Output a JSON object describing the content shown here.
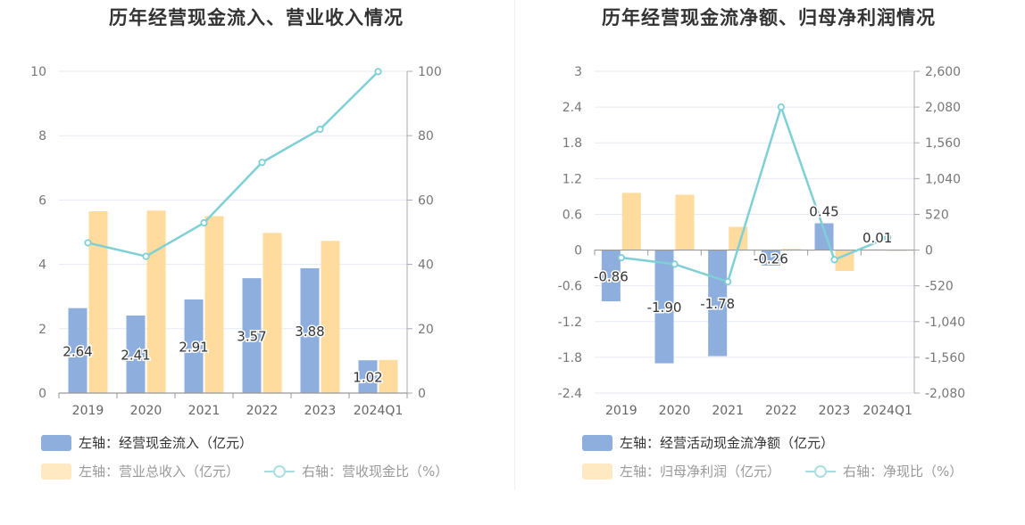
{
  "chart_data": [
    {
      "type": "bar",
      "title": "历年经营现金流入、营业收入情况",
      "categories": [
        "2019",
        "2020",
        "2021",
        "2022",
        "2023",
        "2024Q1"
      ],
      "left_axis": {
        "ylim": [
          0,
          10
        ],
        "ticks": [
          "0",
          "2",
          "4",
          "6",
          "8",
          "10"
        ]
      },
      "right_axis": {
        "ylim": [
          0,
          100
        ],
        "ticks": [
          "0",
          "20",
          "40",
          "60",
          "80",
          "100"
        ]
      },
      "series": [
        {
          "name": "左轴：经营现金流入（亿元）",
          "axis": "left",
          "type": "bar",
          "color": "#8eaedd",
          "values": [
            2.64,
            2.41,
            2.91,
            3.57,
            3.88,
            1.02
          ],
          "labels": [
            "2.64",
            "2.41",
            "2.91",
            "3.57",
            "3.88",
            "1.02"
          ]
        },
        {
          "name": "左轴：营业总收入（亿元）",
          "axis": "left",
          "type": "bar",
          "color": "#ffdc9e",
          "values": [
            5.65,
            5.67,
            5.5,
            4.98,
            4.73,
            1.03
          ]
        },
        {
          "name": "右轴：营收现金比（%）",
          "axis": "right",
          "type": "line",
          "color": "#7fd0d6",
          "values": [
            46.7,
            42.5,
            52.9,
            71.7,
            82.0,
            99.9
          ]
        }
      ],
      "grid": true,
      "legend_position": "bottom-left"
    },
    {
      "type": "bar",
      "title": "历年经营现金流净额、归母净利润情况",
      "categories": [
        "2019",
        "2020",
        "2021",
        "2022",
        "2023",
        "2024Q1"
      ],
      "left_axis": {
        "ylim": [
          -2.4,
          3
        ],
        "ticks": [
          "-2.4",
          "-1.8",
          "-1.2",
          "-0.6",
          "0",
          "0.6",
          "1.2",
          "1.8",
          "2.4",
          "3"
        ]
      },
      "right_axis": {
        "ylim": [
          -2080,
          2600
        ],
        "ticks": [
          "-2,080",
          "-1,560",
          "-1,040",
          "-520",
          "0",
          "520",
          "1,040",
          "1,560",
          "2,080",
          "2,600"
        ]
      },
      "series": [
        {
          "name": "左轴：经营活动现金流净额（亿元）",
          "axis": "left",
          "type": "bar",
          "color": "#8eaedd",
          "values": [
            -0.86,
            -1.9,
            -1.78,
            -0.26,
            0.45,
            0.01
          ],
          "labels": [
            "-0.86",
            "-1.90",
            "-1.78",
            "-0.26",
            "0.45",
            "0.01"
          ]
        },
        {
          "name": "左轴：归母净利润（亿元）",
          "axis": "left",
          "type": "bar",
          "color": "#ffdc9e",
          "values": [
            0.96,
            0.93,
            0.39,
            0.02,
            -0.35,
            0.0
          ]
        },
        {
          "name": "右轴：净现比（%）",
          "axis": "right",
          "type": "line",
          "color": "#7fd0d6",
          "values": [
            -110,
            -205,
            -460,
            2080,
            -140,
            180
          ]
        }
      ],
      "grid": true,
      "legend_position": "bottom-left"
    }
  ]
}
